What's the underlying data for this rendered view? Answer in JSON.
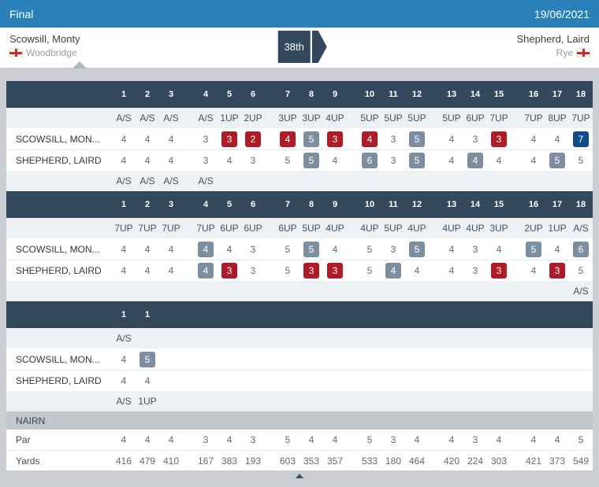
{
  "header": {
    "title": "Final",
    "date": "19/06/2021"
  },
  "matchup": {
    "player1": {
      "name": "Scowsill, Monty",
      "club": "Woodbridge",
      "flag": "england-flag"
    },
    "player2": {
      "name": "Shepherd, Laird",
      "club": "Rye",
      "flag": "england-flag"
    },
    "result": "38th"
  },
  "colors": {
    "top_bar": "#2a81b9",
    "table_header": "#33485c",
    "birdie_box": "#b01b28",
    "bogey_box": "#7e8ea1",
    "double_bogey_box": "#134a8c"
  },
  "score_mark_legend": {
    "b": "birdie (red box)",
    "o": "bogey (gray box)",
    "d": "double bogey or worse (navy box)"
  },
  "rounds": [
    {
      "holes": [
        "1",
        "2",
        "3",
        "4",
        "5",
        "6",
        "7",
        "8",
        "9",
        "10",
        "11",
        "12",
        "13",
        "14",
        "15",
        "16",
        "17",
        "18"
      ],
      "p1_status": [
        "A/S",
        "A/S",
        "A/S",
        "A/S",
        "1UP",
        "2UP",
        "3UP",
        "3UP",
        "4UP",
        "5UP",
        "5UP",
        "5UP",
        "5UP",
        "6UP",
        "7UP",
        "7UP",
        "8UP",
        "7UP"
      ],
      "p1_label": "SCOWSILL, MON...",
      "p1_scores": [
        "4",
        "4",
        "4",
        "3",
        "3b",
        "2b",
        "4b",
        "5o",
        "3b",
        "4b",
        "3",
        "5o",
        "4",
        "3",
        "3b",
        "4",
        "4",
        "7d"
      ],
      "p2_label": "SHEPHERD, LAIRD",
      "p2_scores": [
        "4",
        "4",
        "4",
        "3",
        "4",
        "3",
        "5",
        "5o",
        "4",
        "6o",
        "3",
        "5o",
        "4",
        "4o",
        "4",
        "4",
        "5o",
        "5"
      ],
      "p2_status": [
        "A/S",
        "A/S",
        "A/S",
        "A/S",
        "",
        "",
        "",
        "",
        "",
        "",
        "",
        "",
        "",
        "",
        "",
        "",
        "",
        ""
      ]
    },
    {
      "holes": [
        "1",
        "2",
        "3",
        "4",
        "5",
        "6",
        "7",
        "8",
        "9",
        "10",
        "11",
        "12",
        "13",
        "14",
        "15",
        "16",
        "17",
        "18"
      ],
      "p1_status": [
        "7UP",
        "7UP",
        "7UP",
        "7UP",
        "6UP",
        "6UP",
        "6UP",
        "5UP",
        "4UP",
        "4UP",
        "5UP",
        "4UP",
        "4UP",
        "4UP",
        "3UP",
        "2UP",
        "1UP",
        "A/S"
      ],
      "p1_label": "SCOWSILL, MON...",
      "p1_scores": [
        "4",
        "4",
        "4",
        "4o",
        "4",
        "3",
        "5",
        "5o",
        "4",
        "5",
        "3",
        "5o",
        "4",
        "3",
        "4",
        "5o",
        "4",
        "6o"
      ],
      "p2_label": "SHEPHERD, LAIRD",
      "p2_scores": [
        "4",
        "4",
        "4",
        "4o",
        "3b",
        "3",
        "5",
        "3b",
        "3b",
        "5",
        "4o",
        "4",
        "4",
        "3",
        "3b",
        "4",
        "3b",
        "5"
      ],
      "p2_status": [
        "",
        "",
        "",
        "",
        "",
        "",
        "",
        "",
        "",
        "",
        "",
        "",
        "",
        "",
        "",
        "",
        "",
        "A/S"
      ]
    },
    {
      "holes": [
        "1",
        "1",
        "",
        "",
        "",
        "",
        "",
        "",
        "",
        "",
        "",
        "",
        "",
        "",
        "",
        "",
        "",
        ""
      ],
      "p1_status": [
        "A/S",
        "",
        "",
        "",
        "",
        "",
        "",
        "",
        "",
        "",
        "",
        "",
        "",
        "",
        "",
        "",
        "",
        ""
      ],
      "p1_label": "SCOWSILL, MON...",
      "p1_scores": [
        "4",
        "5o",
        "",
        "",
        "",
        "",
        "",
        "",
        "",
        "",
        "",
        "",
        "",
        "",
        "",
        "",
        "",
        ""
      ],
      "p2_label": "SHEPHERD, LAIRD",
      "p2_scores": [
        "4",
        "4",
        "",
        "",
        "",
        "",
        "",
        "",
        "",
        "",
        "",
        "",
        "",
        "",
        "",
        "",
        "",
        ""
      ],
      "p2_status": [
        "A/S",
        "1UP",
        "",
        "",
        "",
        "",
        "",
        "",
        "",
        "",
        "",
        "",
        "",
        "",
        "",
        "",
        "",
        ""
      ]
    }
  ],
  "course": {
    "name": "NAIRN",
    "par_label": "Par",
    "par": [
      "4",
      "4",
      "4",
      "3",
      "4",
      "3",
      "5",
      "4",
      "4",
      "5",
      "3",
      "4",
      "4",
      "3",
      "4",
      "4",
      "4",
      "5"
    ],
    "yards_label": "Yards",
    "yards": [
      "416",
      "479",
      "410",
      "167",
      "383",
      "193",
      "603",
      "353",
      "357",
      "533",
      "180",
      "464",
      "420",
      "224",
      "303",
      "421",
      "373",
      "549"
    ]
  }
}
